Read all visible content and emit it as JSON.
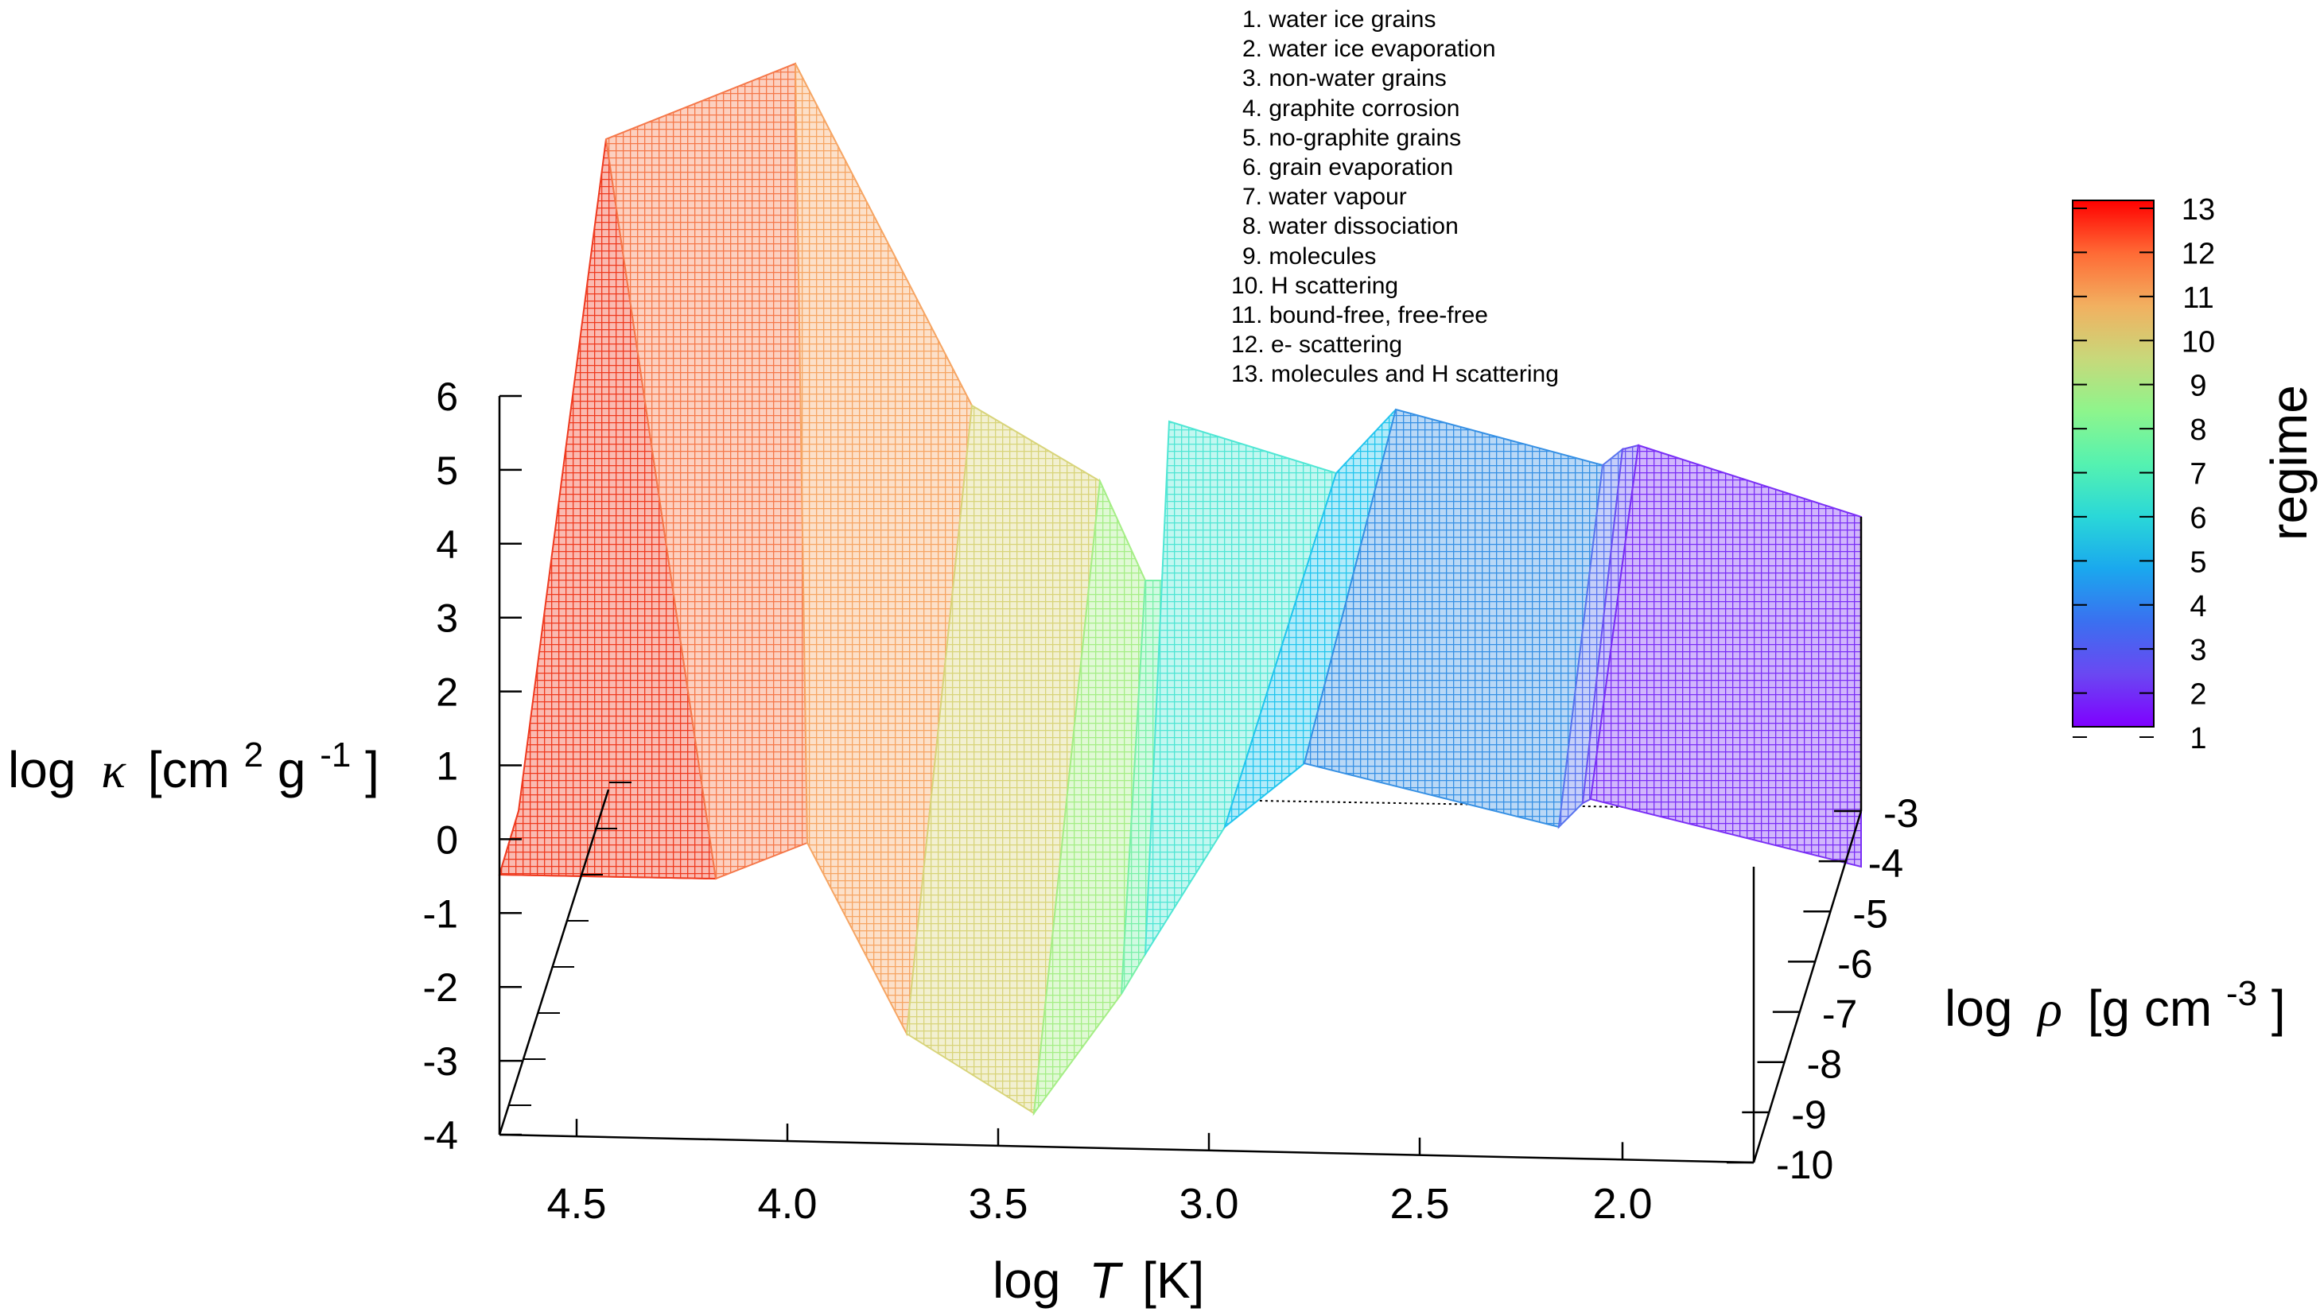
{
  "chart_data": {
    "type": "surface",
    "zlabel": "log κ [cm² g⁻¹]",
    "zlabel_prefix": "log",
    "zlabel_symbol": "κ",
    "zlabel_units": "[cm",
    "zlabel_exp1": "2",
    "zlabel_mid": " g",
    "zlabel_exp2": "-1",
    "zlabel_end": "]",
    "xlabel": "log T [K]",
    "xlabel_prefix": "log",
    "xlabel_symbol": "T",
    "xlabel_units": "[K]",
    "ylabel": "log ρ [g cm⁻³]",
    "ylabel_prefix": "log",
    "ylabel_symbol": "ρ",
    "ylabel_units": "[g cm",
    "ylabel_exp": "-3",
    "ylabel_end": "]",
    "colorbar_label": "regime",
    "zlim": [
      -4,
      6
    ],
    "z_ticks": [
      "6",
      "5",
      "4",
      "3",
      "2",
      "1",
      "0",
      "-1",
      "-2",
      "-3",
      "-4"
    ],
    "x_ticks": [
      "4.5",
      "4.0",
      "3.5",
      "3.0",
      "2.5",
      "2.0"
    ],
    "y_ticks": [
      "-3",
      "-4",
      "-5",
      "-6",
      "-7",
      "-8",
      "-9",
      "-10"
    ],
    "colorbar_ticks": [
      "13",
      "12",
      "11",
      "10",
      "9",
      "8",
      "7",
      "6",
      "5",
      "4",
      "3",
      "2",
      "1"
    ],
    "legend": [
      "1. water ice grains",
      "2. water ice evaporation",
      "3. non-water grains",
      "4. graphite corrosion",
      "5. no-graphite grains",
      "6. grain evaporation",
      "7. water vapour",
      "8. water dissociation",
      "9. molecules",
      "10. H scattering",
      "11. bound-free, free-free",
      "12. e- scattering",
      "13. molecules and H scattering"
    ],
    "regimes": [
      {
        "regime": 12,
        "color": "#ef3a1f"
      },
      {
        "regime": 11,
        "color": "#f5784a"
      },
      {
        "regime": 10,
        "color": "#f6a563"
      },
      {
        "regime": 9,
        "color": "#d8d47a"
      },
      {
        "regime": 8,
        "color": "#a5ee86"
      },
      {
        "regime": 7,
        "color": "#79f0a8"
      },
      {
        "regime": 6,
        "color": "#4fe6d4"
      },
      {
        "regime": 5,
        "color": "#22c5ee"
      },
      {
        "regime": 4,
        "color": "#3690e4"
      },
      {
        "regime": 3,
        "color": "#5874ee"
      },
      {
        "regime": 2,
        "color": "#6a52f2"
      },
      {
        "regime": 1,
        "color": "#7a2ff5"
      }
    ],
    "colorbar_colors": [
      "#ff0000",
      "#ff6a35",
      "#f2b060",
      "#c8d87a",
      "#8ef58c",
      "#55f2b0",
      "#2ad8d8",
      "#1aa8ee",
      "#3a70f0",
      "#6a48f2",
      "#7f00ff"
    ]
  }
}
